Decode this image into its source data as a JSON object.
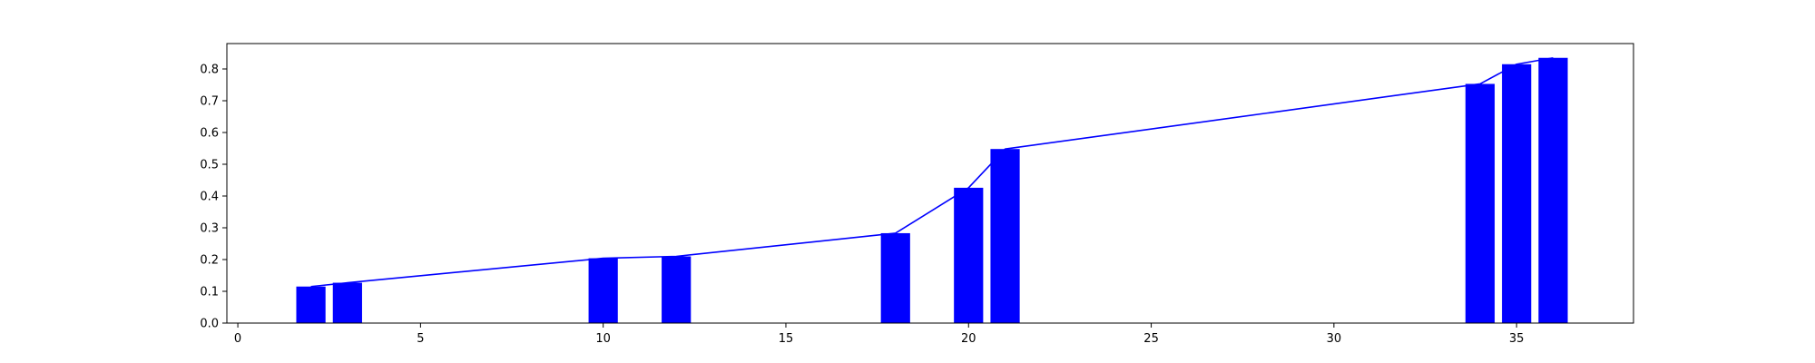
{
  "chart_data": {
    "type": "bar",
    "title": "",
    "xlabel": "",
    "ylabel": "",
    "xlim": [
      -0.3,
      38.2
    ],
    "ylim": [
      0,
      0.88
    ],
    "xticks": [
      0,
      5,
      10,
      15,
      20,
      25,
      30,
      35
    ],
    "yticks": [
      0.0,
      0.1,
      0.2,
      0.3,
      0.4,
      0.5,
      0.6,
      0.7,
      0.8
    ],
    "xtick_labels": [
      "0",
      "5",
      "10",
      "15",
      "20",
      "25",
      "30",
      "35"
    ],
    "ytick_labels": [
      "0.0",
      "0.1",
      "0.2",
      "0.3",
      "0.4",
      "0.5",
      "0.6",
      "0.7",
      "0.8"
    ],
    "grid": false,
    "legend": "none",
    "bar_width": 0.8,
    "colors": {
      "bar": "#0000ff",
      "line": "#0000ff",
      "axes": "#000000",
      "background": "#ffffff"
    },
    "series": [
      {
        "kind": "bar",
        "x": [
          2,
          3,
          10,
          12,
          18,
          20,
          21,
          34,
          35,
          36
        ],
        "values": [
          0.115,
          0.127,
          0.204,
          0.21,
          0.283,
          0.426,
          0.548,
          0.753,
          0.815,
          0.835
        ]
      },
      {
        "kind": "line",
        "x": [
          2,
          3,
          10,
          12,
          18,
          20,
          21,
          34,
          35,
          36
        ],
        "values": [
          0.115,
          0.127,
          0.204,
          0.21,
          0.283,
          0.426,
          0.548,
          0.753,
          0.815,
          0.835
        ]
      }
    ]
  }
}
